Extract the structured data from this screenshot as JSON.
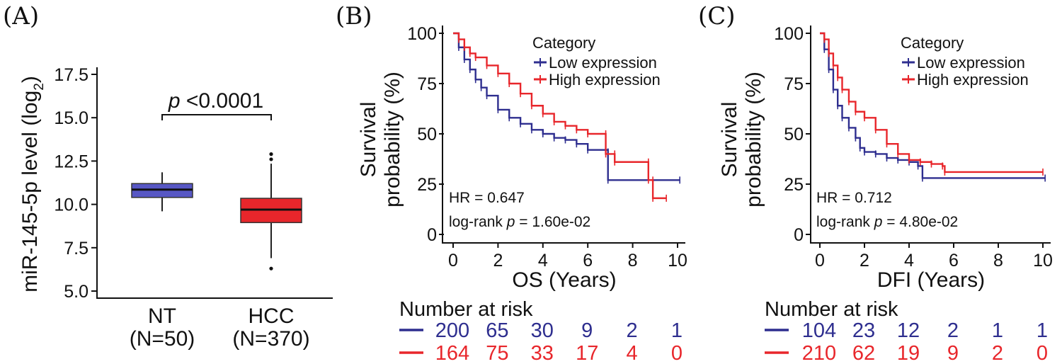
{
  "colors": {
    "low": "#2e2e8f",
    "high": "#e8262b",
    "nt_box": "#5757c4",
    "hcc_box": "#e8262b"
  },
  "panels": {
    "A": {
      "label": "(A)"
    },
    "B": {
      "label": "(B)"
    },
    "C": {
      "label": "(C)"
    }
  },
  "chart_data": [
    {
      "type": "box",
      "ylabel_main": "miR-145-5p level (log",
      "ylabel_sub": "2",
      "ylabel_close": ")",
      "ylim": [
        5.0,
        17.5
      ],
      "yticks": [
        "5.0",
        "7.5",
        "10.0",
        "12.5",
        "15.0",
        "17.5"
      ],
      "p_prefix": "p",
      "p_text": " <0.0001",
      "groups": [
        {
          "name": "NT",
          "n_label": "(N=50)",
          "min": 9.6,
          "q1": 10.4,
          "median": 10.85,
          "q3": 11.2,
          "max": 11.85,
          "outliers": []
        },
        {
          "name": "HCC",
          "n_label": "(N=370)",
          "min": 6.9,
          "q1": 8.95,
          "median": 9.7,
          "q3": 10.35,
          "max": 12.35,
          "outliers": [
            12.6,
            12.9,
            6.3
          ]
        }
      ]
    },
    {
      "type": "km",
      "xlabel": "OS (Years)",
      "ylabel_line1": "Survival",
      "ylabel_line2": "probability (%)",
      "xlim": [
        0,
        10
      ],
      "ylim": [
        0,
        100
      ],
      "xticks": [
        "0",
        "2",
        "4",
        "6",
        "8",
        "10"
      ],
      "yticks": [
        "0",
        "25",
        "50",
        "75",
        "100"
      ],
      "legend_title": "Category",
      "legend_low": "Low expression",
      "legend_high": "High expression",
      "hr_text": "HR = 0.647",
      "logrank_prefix": "log-rank ",
      "logrank_p": "p",
      "logrank_value": " = 1.60e-02",
      "risk_title": "Number at risk",
      "risk_low": [
        "200",
        "65",
        "30",
        "9",
        "2",
        "1"
      ],
      "risk_high": [
        "164",
        "75",
        "33",
        "17",
        "4",
        "0"
      ],
      "series": [
        {
          "name": "Low expression",
          "points": [
            [
              0,
              100
            ],
            [
              0.25,
              93
            ],
            [
              0.5,
              87
            ],
            [
              0.75,
              82
            ],
            [
              1.0,
              77
            ],
            [
              1.25,
              73
            ],
            [
              1.5,
              69
            ],
            [
              2.0,
              62
            ],
            [
              2.5,
              58
            ],
            [
              3.0,
              55
            ],
            [
              3.5,
              52
            ],
            [
              4.0,
              50
            ],
            [
              4.5,
              48
            ],
            [
              5.0,
              47
            ],
            [
              5.5,
              45
            ],
            [
              6.0,
              42
            ],
            [
              6.9,
              41
            ],
            [
              6.9,
              27
            ],
            [
              10.1,
              27
            ]
          ]
        },
        {
          "name": "High expression",
          "points": [
            [
              0,
              100
            ],
            [
              0.25,
              97
            ],
            [
              0.5,
              93
            ],
            [
              0.75,
              90
            ],
            [
              1.0,
              88
            ],
            [
              1.5,
              84
            ],
            [
              2.0,
              80
            ],
            [
              2.5,
              75
            ],
            [
              3.0,
              70
            ],
            [
              3.5,
              64
            ],
            [
              4.0,
              60
            ],
            [
              4.5,
              56
            ],
            [
              5.0,
              54
            ],
            [
              5.5,
              52
            ],
            [
              6.0,
              50
            ],
            [
              6.8,
              50
            ],
            [
              6.8,
              40
            ],
            [
              7.2,
              40
            ],
            [
              7.2,
              36
            ],
            [
              8.7,
              36
            ],
            [
              8.7,
              27
            ],
            [
              8.9,
              27
            ],
            [
              8.9,
              18
            ],
            [
              9.5,
              18
            ]
          ]
        }
      ]
    },
    {
      "type": "km",
      "xlabel": "DFI (Years)",
      "ylabel_line1": "Survival",
      "ylabel_line2": "probability (%)",
      "xlim": [
        0,
        10
      ],
      "ylim": [
        0,
        100
      ],
      "xticks": [
        "0",
        "2",
        "4",
        "6",
        "8",
        "10"
      ],
      "yticks": [
        "0",
        "25",
        "50",
        "75",
        "100"
      ],
      "legend_title": "Category",
      "legend_low": "Low expression",
      "legend_high": "High expression",
      "hr_text": "HR = 0.712",
      "logrank_prefix": "log-rank ",
      "logrank_p": "p",
      "logrank_value": " = 4.80e-02",
      "risk_title": "Number at risk",
      "risk_low": [
        "104",
        "23",
        "12",
        "2",
        "1",
        "1"
      ],
      "risk_high": [
        "210",
        "62",
        "19",
        "9",
        "2",
        "0"
      ],
      "series": [
        {
          "name": "Low expression",
          "points": [
            [
              0,
              100
            ],
            [
              0.2,
              92
            ],
            [
              0.4,
              82
            ],
            [
              0.6,
              72
            ],
            [
              0.8,
              64
            ],
            [
              1.0,
              58
            ],
            [
              1.3,
              53
            ],
            [
              1.6,
              48
            ],
            [
              1.8,
              43
            ],
            [
              2.0,
              41
            ],
            [
              2.5,
              40
            ],
            [
              3.0,
              38
            ],
            [
              3.5,
              37
            ],
            [
              4.0,
              36
            ],
            [
              4.4,
              34
            ],
            [
              4.6,
              28
            ],
            [
              10.1,
              28
            ]
          ]
        },
        {
          "name": "High expression",
          "points": [
            [
              0,
              100
            ],
            [
              0.2,
              97
            ],
            [
              0.4,
              90
            ],
            [
              0.6,
              84
            ],
            [
              0.8,
              78
            ],
            [
              1.0,
              72
            ],
            [
              1.3,
              66
            ],
            [
              1.6,
              61
            ],
            [
              2.0,
              58
            ],
            [
              2.5,
              52
            ],
            [
              3.0,
              45
            ],
            [
              3.5,
              40
            ],
            [
              4.0,
              37
            ],
            [
              4.5,
              36
            ],
            [
              5.0,
              35
            ],
            [
              5.5,
              34
            ],
            [
              5.6,
              31
            ],
            [
              10.0,
              31
            ]
          ]
        }
      ]
    }
  ]
}
